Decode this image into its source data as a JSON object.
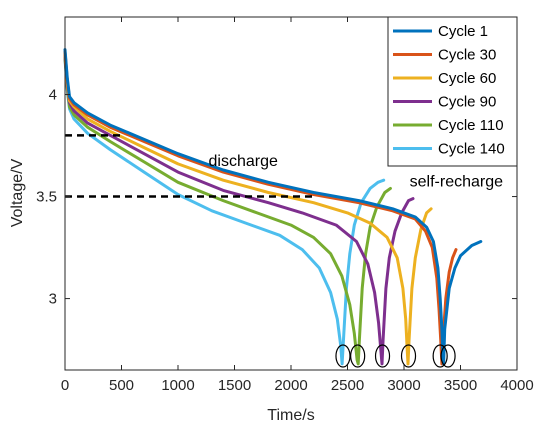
{
  "chart_data": {
    "type": "line",
    "xlabel": "Time/s",
    "ylabel": "Voltage/V",
    "xlim": [
      0,
      4000
    ],
    "ylim": [
      2.65,
      4.38
    ],
    "xticks": [
      0,
      500,
      1000,
      1500,
      2000,
      2500,
      3000,
      3500,
      4000
    ],
    "yticks": [
      3,
      3.5,
      4
    ],
    "ytick_labels": [
      "3",
      "3.5",
      "4"
    ],
    "legend_position": "top-right",
    "grid": false,
    "series": [
      {
        "name": "Cycle 1",
        "color": "#0072BD",
        "points": [
          [
            0,
            4.22
          ],
          [
            20,
            4.08
          ],
          [
            40,
            3.99
          ],
          [
            80,
            3.96
          ],
          [
            200,
            3.91
          ],
          [
            400,
            3.85
          ],
          [
            700,
            3.78
          ],
          [
            1000,
            3.71
          ],
          [
            1400,
            3.63
          ],
          [
            1800,
            3.57
          ],
          [
            2200,
            3.52
          ],
          [
            2600,
            3.48
          ],
          [
            2900,
            3.44
          ],
          [
            3100,
            3.4
          ],
          [
            3200,
            3.35
          ],
          [
            3260,
            3.28
          ],
          [
            3300,
            3.15
          ],
          [
            3320,
            3.0
          ],
          [
            3335,
            2.85
          ],
          [
            3345,
            2.7
          ],
          [
            3350,
            2.68
          ],
          [
            3360,
            2.85
          ],
          [
            3400,
            3.05
          ],
          [
            3450,
            3.15
          ],
          [
            3500,
            3.21
          ],
          [
            3600,
            3.26
          ],
          [
            3680,
            3.28
          ]
        ]
      },
      {
        "name": "Cycle 30",
        "color": "#D95319",
        "points": [
          [
            0,
            4.21
          ],
          [
            20,
            4.07
          ],
          [
            40,
            3.98
          ],
          [
            80,
            3.95
          ],
          [
            200,
            3.9
          ],
          [
            400,
            3.84
          ],
          [
            700,
            3.77
          ],
          [
            1000,
            3.7
          ],
          [
            1400,
            3.62
          ],
          [
            1800,
            3.56
          ],
          [
            2200,
            3.51
          ],
          [
            2600,
            3.47
          ],
          [
            2900,
            3.43
          ],
          [
            3100,
            3.39
          ],
          [
            3190,
            3.33
          ],
          [
            3250,
            3.25
          ],
          [
            3290,
            3.1
          ],
          [
            3310,
            2.95
          ],
          [
            3325,
            2.8
          ],
          [
            3335,
            2.68
          ],
          [
            3345,
            2.8
          ],
          [
            3370,
            3.0
          ],
          [
            3400,
            3.13
          ],
          [
            3430,
            3.2
          ],
          [
            3460,
            3.24
          ]
        ]
      },
      {
        "name": "Cycle 60",
        "color": "#EDB120",
        "points": [
          [
            0,
            4.2
          ],
          [
            20,
            4.05
          ],
          [
            40,
            3.97
          ],
          [
            80,
            3.94
          ],
          [
            200,
            3.88
          ],
          [
            400,
            3.82
          ],
          [
            700,
            3.74
          ],
          [
            1000,
            3.66
          ],
          [
            1400,
            3.58
          ],
          [
            1800,
            3.52
          ],
          [
            2200,
            3.47
          ],
          [
            2500,
            3.42
          ],
          [
            2700,
            3.37
          ],
          [
            2850,
            3.3
          ],
          [
            2940,
            3.2
          ],
          [
            2990,
            3.05
          ],
          [
            3015,
            2.9
          ],
          [
            3028,
            2.75
          ],
          [
            3035,
            2.68
          ],
          [
            3045,
            2.8
          ],
          [
            3070,
            3.05
          ],
          [
            3100,
            3.2
          ],
          [
            3150,
            3.34
          ],
          [
            3200,
            3.42
          ],
          [
            3240,
            3.44
          ]
        ]
      },
      {
        "name": "Cycle 90",
        "color": "#7E2F8E",
        "points": [
          [
            0,
            4.19
          ],
          [
            20,
            4.04
          ],
          [
            40,
            3.96
          ],
          [
            80,
            3.92
          ],
          [
            200,
            3.86
          ],
          [
            400,
            3.8
          ],
          [
            700,
            3.71
          ],
          [
            1000,
            3.62
          ],
          [
            1400,
            3.53
          ],
          [
            1800,
            3.47
          ],
          [
            2100,
            3.42
          ],
          [
            2400,
            3.36
          ],
          [
            2580,
            3.28
          ],
          [
            2680,
            3.17
          ],
          [
            2740,
            3.03
          ],
          [
            2775,
            2.88
          ],
          [
            2795,
            2.75
          ],
          [
            2805,
            2.68
          ],
          [
            2815,
            2.8
          ],
          [
            2840,
            3.05
          ],
          [
            2870,
            3.2
          ],
          [
            2920,
            3.33
          ],
          [
            2980,
            3.42
          ],
          [
            3040,
            3.48
          ],
          [
            3080,
            3.49
          ]
        ]
      },
      {
        "name": "Cycle 110",
        "color": "#77AC30",
        "points": [
          [
            0,
            4.18
          ],
          [
            20,
            4.03
          ],
          [
            40,
            3.94
          ],
          [
            80,
            3.9
          ],
          [
            200,
            3.84
          ],
          [
            400,
            3.77
          ],
          [
            700,
            3.67
          ],
          [
            1000,
            3.57
          ],
          [
            1400,
            3.48
          ],
          [
            1700,
            3.42
          ],
          [
            2000,
            3.36
          ],
          [
            2200,
            3.3
          ],
          [
            2350,
            3.22
          ],
          [
            2450,
            3.11
          ],
          [
            2520,
            2.97
          ],
          [
            2560,
            2.83
          ],
          [
            2585,
            2.7
          ],
          [
            2595,
            2.68
          ],
          [
            2605,
            2.8
          ],
          [
            2630,
            3.05
          ],
          [
            2660,
            3.22
          ],
          [
            2700,
            3.35
          ],
          [
            2760,
            3.45
          ],
          [
            2830,
            3.52
          ],
          [
            2880,
            3.54
          ]
        ]
      },
      {
        "name": "Cycle 140",
        "color": "#4DBEEE",
        "points": [
          [
            0,
            4.17
          ],
          [
            20,
            4.02
          ],
          [
            40,
            3.93
          ],
          [
            80,
            3.88
          ],
          [
            200,
            3.81
          ],
          [
            400,
            3.73
          ],
          [
            700,
            3.62
          ],
          [
            1000,
            3.51
          ],
          [
            1300,
            3.43
          ],
          [
            1600,
            3.37
          ],
          [
            1900,
            3.31
          ],
          [
            2100,
            3.24
          ],
          [
            2250,
            3.15
          ],
          [
            2350,
            3.03
          ],
          [
            2410,
            2.9
          ],
          [
            2440,
            2.77
          ],
          [
            2452,
            2.68
          ],
          [
            2465,
            2.8
          ],
          [
            2490,
            3.05
          ],
          [
            2520,
            3.22
          ],
          [
            2560,
            3.36
          ],
          [
            2620,
            3.47
          ],
          [
            2700,
            3.54
          ],
          [
            2770,
            3.57
          ],
          [
            2820,
            3.58
          ]
        ]
      }
    ],
    "reference_lines": [
      {
        "y": 3.8,
        "x_start": 0,
        "x_end": 500,
        "style": "dashed"
      },
      {
        "y": 3.5,
        "x_start": 0,
        "x_end": 2200,
        "style": "dashed"
      }
    ],
    "annotations": [
      {
        "text": "discharge",
        "x": 1270,
        "y": 3.65
      },
      {
        "text": "self-recharge",
        "x": 3050,
        "y": 3.55
      }
    ],
    "ellipse_markers": [
      {
        "x": 2460,
        "y": 2.68
      },
      {
        "x": 2590,
        "y": 2.68
      },
      {
        "x": 2810,
        "y": 2.68
      },
      {
        "x": 3040,
        "y": 2.68
      },
      {
        "x": 3320,
        "y": 2.68
      },
      {
        "x": 3390,
        "y": 2.68
      }
    ]
  }
}
